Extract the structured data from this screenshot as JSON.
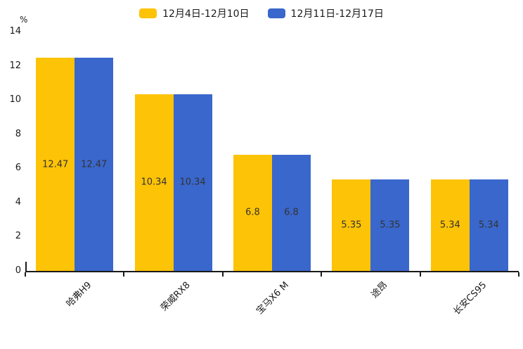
{
  "chart_data": {
    "type": "bar",
    "title": "",
    "xlabel": "",
    "ylabel": "%",
    "categories": [
      "哈弗H9",
      "荣威RX8",
      "宝马X6 M",
      "途昂",
      "长安CS95"
    ],
    "series": [
      {
        "name": "12月4日-12月10日",
        "color": "#FDC306",
        "values": [
          12.47,
          10.34,
          6.8,
          5.35,
          5.34
        ]
      },
      {
        "name": "12月11日-12月17日",
        "color": "#3A67CC",
        "values": [
          12.47,
          10.34,
          6.8,
          5.35,
          5.34
        ]
      }
    ],
    "ylim": [
      0,
      14
    ],
    "yticks": [
      0,
      2,
      4,
      6,
      8,
      10,
      12,
      14
    ],
    "grid": false,
    "legend_position": "top-center",
    "value_labels": "inside-center",
    "xtick_rotation": 45
  },
  "colors": {
    "background": "#ffffff",
    "axis": "#1a1a1a",
    "value_label": "#333333",
    "tick_label": "#1a1a1a"
  }
}
